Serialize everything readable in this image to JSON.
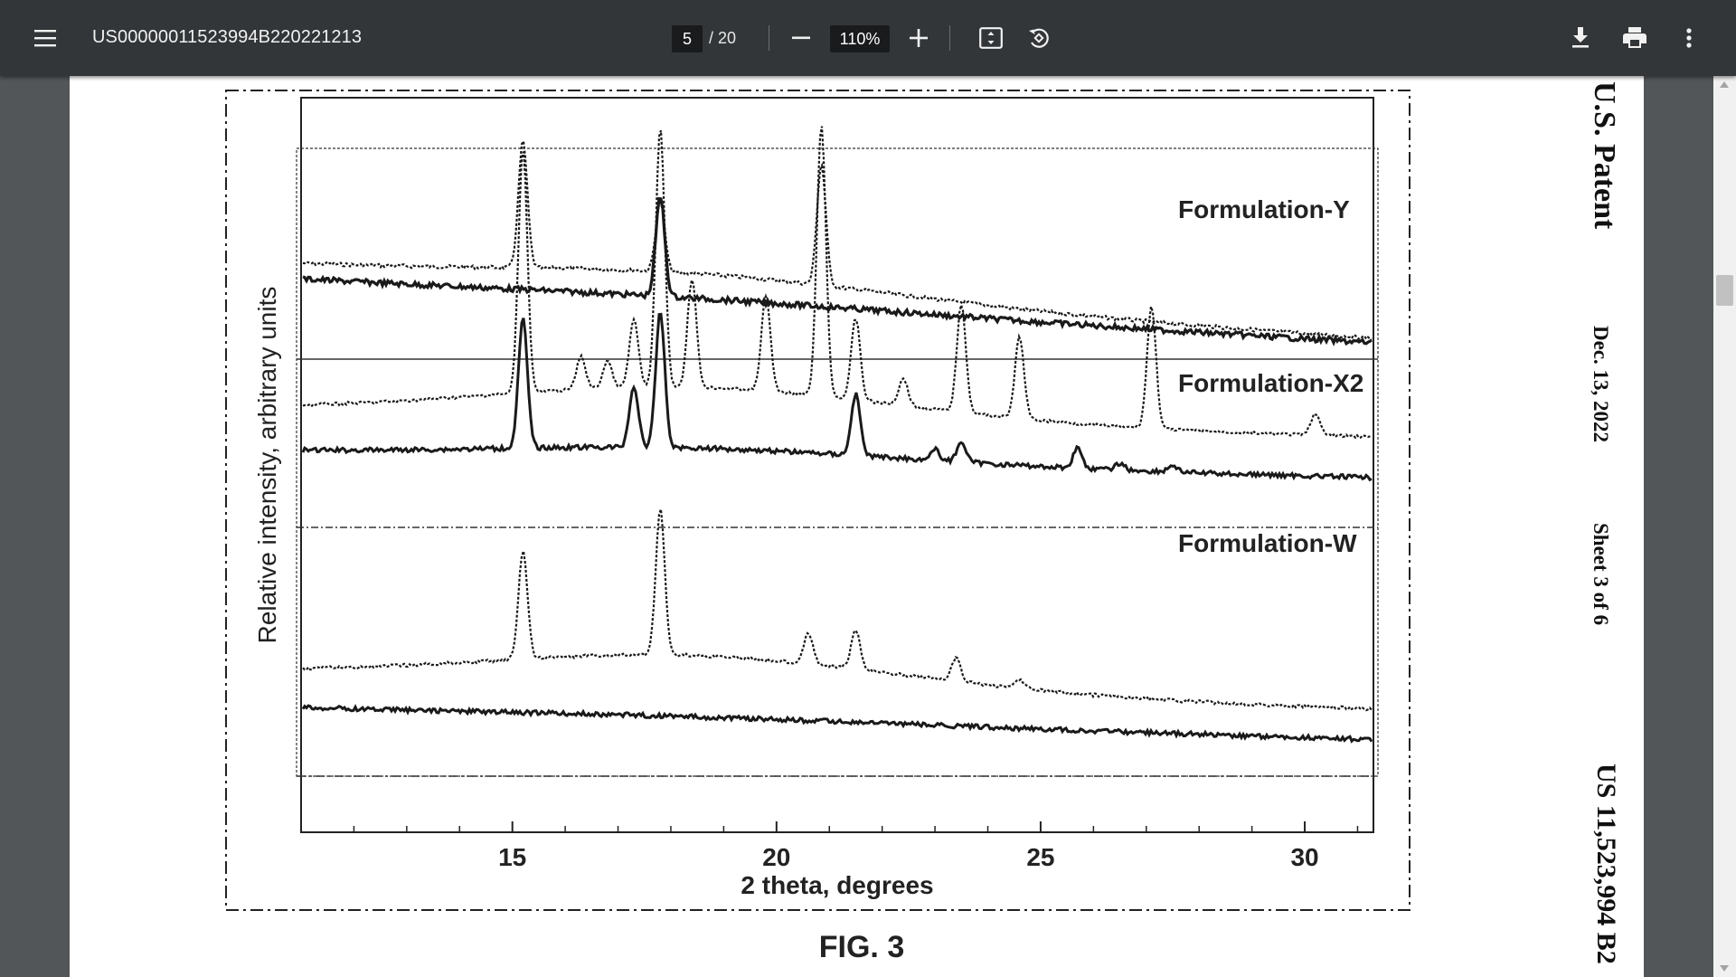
{
  "toolbar": {
    "title": "US00000011523994B220221213",
    "page_current": "5",
    "page_total": "/ 20",
    "zoom": "110%",
    "icons": [
      "menu-icon",
      "minus-icon",
      "plus-icon",
      "fit-page-icon",
      "rotate-icon",
      "download-icon",
      "print-icon",
      "more-vert-icon"
    ]
  },
  "page": {
    "side_header": {
      "patent": "U.S. Patent",
      "date": "Dec. 13, 2022",
      "sheet": "Sheet 3 of 6",
      "number": "US 11,523,994 B2"
    },
    "figure_caption": "FIG. 3"
  },
  "chart_data": {
    "type": "line",
    "xlabel": "2 theta, degrees",
    "ylabel": "Relative intensity, arbitrary units",
    "xlim": [
      11,
      31.3
    ],
    "xticks": [
      15,
      20,
      25,
      30
    ],
    "panels": [
      {
        "label": "Formulation-Y",
        "series": [
          {
            "style": "dotted",
            "baseline": 0.15,
            "peaks": [
              [
                15.2,
                1.0
              ],
              [
                17.8,
                0.55
              ],
              [
                20.85,
                0.95
              ]
            ]
          },
          {
            "style": "solid",
            "baseline": 0.05,
            "peaks": [
              [
                17.8,
                1.1
              ]
            ]
          }
        ]
      },
      {
        "label": "Formulation-X2",
        "series": [
          {
            "style": "dotted",
            "baseline": 0.12,
            "peaks": [
              [
                15.2,
                0.9
              ],
              [
                16.3,
                0.12
              ],
              [
                16.8,
                0.1
              ],
              [
                17.3,
                0.25
              ],
              [
                17.8,
                0.95
              ],
              [
                18.4,
                0.4
              ],
              [
                19.8,
                0.35
              ],
              [
                20.85,
                1.0
              ],
              [
                21.5,
                0.3
              ],
              [
                22.4,
                0.1
              ],
              [
                23.5,
                0.4
              ],
              [
                24.6,
                0.3
              ],
              [
                27.1,
                0.45
              ],
              [
                30.2,
                0.08
              ]
            ]
          },
          {
            "style": "solid",
            "baseline": 0.1,
            "peaks": [
              [
                15.2,
                0.95
              ],
              [
                17.3,
                0.45
              ],
              [
                17.8,
                1.0
              ],
              [
                21.5,
                0.45
              ],
              [
                23.0,
                0.08
              ],
              [
                23.5,
                0.15
              ],
              [
                25.7,
                0.15
              ],
              [
                26.5,
                0.05
              ],
              [
                27.5,
                0.05
              ]
            ]
          }
        ]
      },
      {
        "label": "Formulation-W",
        "series": [
          {
            "style": "dotted",
            "baseline": 0.2,
            "peaks": [
              [
                15.2,
                0.7
              ],
              [
                17.8,
                0.95
              ],
              [
                20.6,
                0.2
              ],
              [
                21.5,
                0.25
              ],
              [
                23.4,
                0.15
              ],
              [
                24.6,
                0.06
              ]
            ]
          },
          {
            "style": "solid",
            "baseline": 0.05,
            "peaks": []
          }
        ]
      }
    ]
  }
}
